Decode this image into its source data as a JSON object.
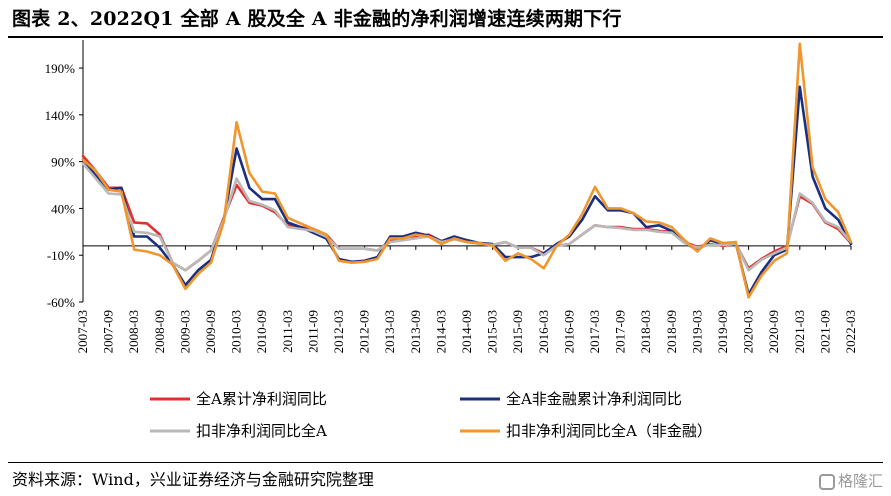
{
  "title": "图表 2、2022Q1 全部 A 股及全 A 非金融的净利润增速连续两期下行",
  "source": "资料来源：Wind，兴业证券经济与金融研究院整理",
  "watermark": "格隆汇",
  "chart_data": {
    "type": "line",
    "ylim": [
      -60,
      220
    ],
    "yticks": [
      "-60%",
      "-10%",
      "40%",
      "90%",
      "140%",
      "190%"
    ],
    "ytick_values": [
      -60,
      -10,
      40,
      90,
      140,
      190
    ],
    "x": [
      "2007-03",
      "2007-06",
      "2007-09",
      "2007-12",
      "2008-03",
      "2008-06",
      "2008-09",
      "2008-12",
      "2009-03",
      "2009-06",
      "2009-09",
      "2009-12",
      "2010-03",
      "2010-06",
      "2010-09",
      "2010-12",
      "2011-03",
      "2011-06",
      "2011-09",
      "2011-12",
      "2012-03",
      "2012-06",
      "2012-09",
      "2012-12",
      "2013-03",
      "2013-06",
      "2013-09",
      "2013-12",
      "2014-03",
      "2014-06",
      "2014-09",
      "2014-12",
      "2015-03",
      "2015-06",
      "2015-09",
      "2015-12",
      "2016-03",
      "2016-06",
      "2016-09",
      "2016-12",
      "2017-03",
      "2017-06",
      "2017-09",
      "2017-12",
      "2018-03",
      "2018-06",
      "2018-09",
      "2018-12",
      "2019-03",
      "2019-06",
      "2019-09",
      "2019-12",
      "2020-03",
      "2020-06",
      "2020-09",
      "2020-12",
      "2021-03",
      "2021-06",
      "2021-09",
      "2021-12",
      "2022-03"
    ],
    "xticks": [
      "2007-03",
      "2007-09",
      "2008-03",
      "2008-09",
      "2009-03",
      "2009-09",
      "2010-03",
      "2010-09",
      "2011-03",
      "2011-09",
      "2012-03",
      "2012-09",
      "2013-03",
      "2013-09",
      "2014-03",
      "2014-09",
      "2015-03",
      "2015-09",
      "2016-03",
      "2016-09",
      "2017-03",
      "2017-09",
      "2018-03",
      "2018-09",
      "2019-03",
      "2019-09",
      "2020-03",
      "2020-09",
      "2021-03",
      "2021-09",
      "2022-03"
    ],
    "legend_position": "bottom",
    "series": [
      {
        "name": "全A累计净利润同比",
        "color": "#e03030",
        "values": [
          96,
          80,
          62,
          62,
          25,
          24,
          12,
          -18,
          -26,
          -16,
          -5,
          30,
          65,
          46,
          43,
          36,
          22,
          20,
          18,
          12,
          -3,
          -3,
          -3,
          -5,
          5,
          8,
          10,
          12,
          5,
          8,
          5,
          2,
          1,
          4,
          -2,
          -2,
          -8,
          0,
          2,
          12,
          22,
          20,
          20,
          18,
          18,
          16,
          15,
          4,
          -1,
          2,
          0,
          2,
          -24,
          -14,
          -6,
          0,
          53,
          45,
          25,
          18,
          3
        ]
      },
      {
        "name": "全A非金融累计净利润同比",
        "color": "#1a2f80",
        "values": [
          92,
          75,
          60,
          62,
          10,
          10,
          -2,
          -20,
          -42,
          -26,
          -15,
          28,
          104,
          62,
          50,
          50,
          25,
          20,
          14,
          8,
          -14,
          -17,
          -16,
          -12,
          10,
          10,
          14,
          11,
          5,
          10,
          6,
          3,
          2,
          -12,
          -12,
          -12,
          -8,
          2,
          10,
          28,
          53,
          38,
          38,
          35,
          20,
          22,
          16,
          4,
          -5,
          6,
          2,
          3,
          -52,
          -28,
          -10,
          -4,
          170,
          74,
          40,
          28,
          2
        ]
      },
      {
        "name": "扣非净利润同比全A",
        "color": "#b9b9b9",
        "values": [
          88,
          72,
          56,
          55,
          15,
          14,
          10,
          -18,
          -26,
          -16,
          -5,
          28,
          72,
          48,
          44,
          38,
          20,
          18,
          16,
          10,
          -3,
          -3,
          -3,
          -5,
          4,
          6,
          8,
          10,
          4,
          7,
          4,
          2,
          1,
          4,
          -2,
          -2,
          -10,
          0,
          2,
          12,
          22,
          20,
          19,
          17,
          17,
          15,
          14,
          3,
          -2,
          1,
          1,
          2,
          -26,
          -15,
          -8,
          -2,
          56,
          46,
          26,
          20,
          4
        ]
      },
      {
        "name": "扣非净利润同比全A（非金融）",
        "color": "#f0962e",
        "values": [
          92,
          80,
          60,
          58,
          -4,
          -6,
          -10,
          -20,
          -46,
          -30,
          -18,
          26,
          132,
          78,
          58,
          56,
          30,
          24,
          18,
          12,
          -16,
          -18,
          -17,
          -14,
          8,
          8,
          12,
          10,
          2,
          8,
          4,
          3,
          0,
          -16,
          -8,
          -14,
          -24,
          0,
          12,
          34,
          63,
          40,
          40,
          35,
          26,
          25,
          20,
          6,
          -6,
          8,
          3,
          4,
          -55,
          -32,
          -16,
          -8,
          216,
          84,
          50,
          36,
          4
        ]
      }
    ]
  }
}
